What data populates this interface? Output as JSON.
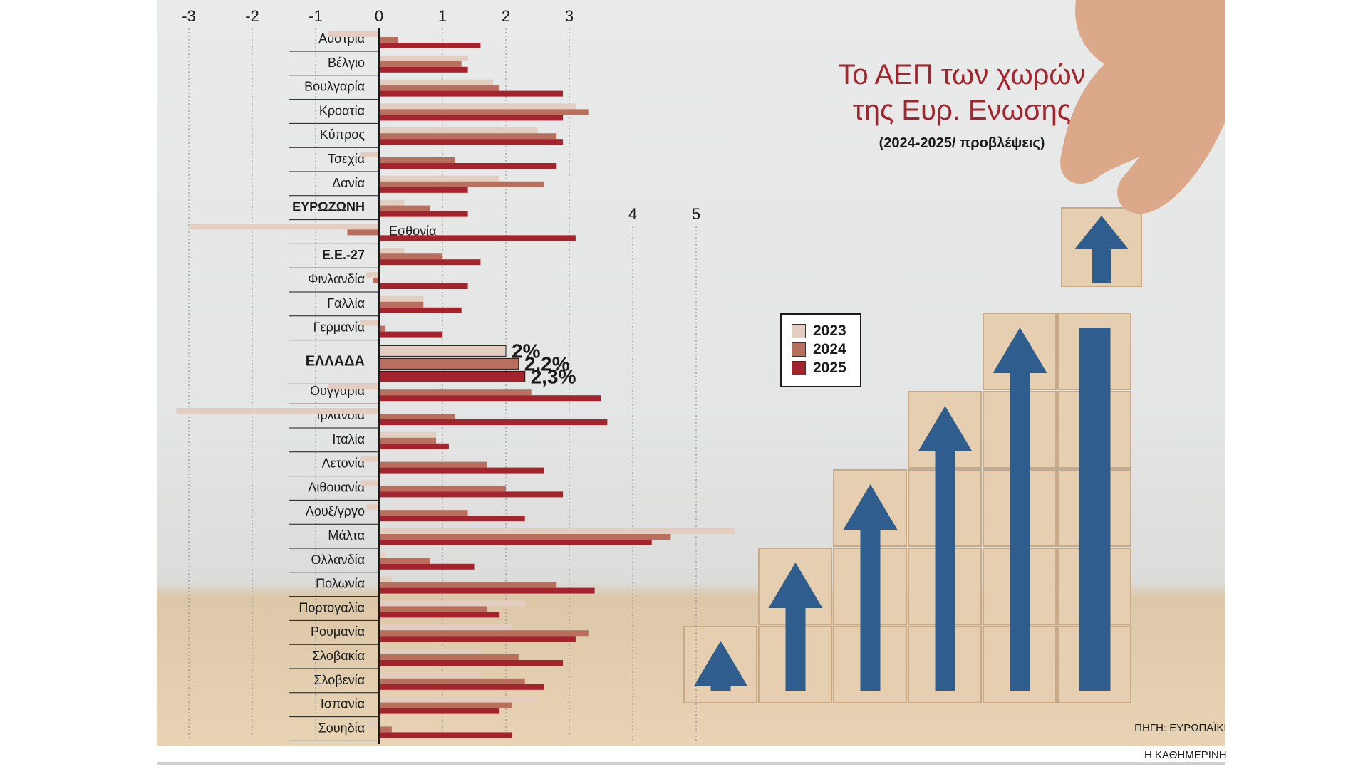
{
  "header": {
    "title_line1": "Το ΑΕΠ των χωρών",
    "title_line2": "της Ευρ. Ενωσης",
    "subtitle": "(2024-2025/ προβλέψεις)"
  },
  "source": "ΠΗΓΗ: ΕΥΡΩΠΑΪΚΗ ΕΠΙΤΡΟΠΗ",
  "brand": "Η ΚΑΘΗΜΕΡΙΝΗ",
  "colors": {
    "y2023": "#e3cdc0",
    "y2024": "#b86f5e",
    "y2025": "#a3242c",
    "title": "#a3242c",
    "arrow_blue": "#2e5d8e"
  },
  "chart_data": {
    "type": "bar",
    "orientation": "horizontal",
    "title": "Το ΑΕΠ των χωρών της Ευρ. Ενωσης",
    "subtitle": "(2024-2025/ προβλέψεις)",
    "xlim": [
      -3,
      5
    ],
    "x_ticks_top": [
      -3,
      -2,
      -1,
      0,
      1,
      2,
      3
    ],
    "x_ticks_extra": [
      4,
      5
    ],
    "legend_position": "right of Greece bars",
    "categories": [
      "Αυστρία",
      "Βέλγιο",
      "Βουλγαρία",
      "Κροατία",
      "Κύπρος",
      "Τσεχία",
      "Δανία",
      "ΕΥΡΩΖΩΝΗ",
      "Εσθονία",
      "Ε.Ε.-27",
      "Φινλανδία",
      "Γαλλία",
      "Γερμανία",
      "ΕΛΛΑΔΑ",
      "Ουγγαρία",
      "Ιρλανδία",
      "Ιταλία",
      "Λετονία",
      "Λιθουανία",
      "Λουξ/γργο",
      "Μάλτα",
      "Ολλανδία",
      "Πολωνία",
      "Πορτογαλία",
      "Ρουμανία",
      "Σλοβακία",
      "Σλοβενία",
      "Ισπανία",
      "Σουηδία"
    ],
    "bold_categories": [
      "ΕΥΡΩΖΩΝΗ",
      "Ε.Ε.-27",
      "ΕΛΛΑΔΑ"
    ],
    "series": [
      {
        "name": "2023",
        "values": [
          -0.8,
          1.4,
          1.8,
          3.1,
          2.5,
          -0.3,
          1.9,
          0.4,
          -3.0,
          0.4,
          -0.2,
          0.7,
          -0.3,
          2.0,
          -0.8,
          -3.2,
          0.9,
          -0.3,
          -0.3,
          -0.2,
          5.6,
          0.1,
          0.2,
          2.3,
          2.1,
          1.6,
          1.6,
          2.5,
          -0.2
        ]
      },
      {
        "name": "2024",
        "values": [
          0.3,
          1.3,
          1.9,
          3.3,
          2.8,
          1.2,
          2.6,
          0.8,
          -0.5,
          1.0,
          -0.1,
          0.7,
          0.1,
          2.2,
          2.4,
          1.2,
          0.9,
          1.7,
          2.0,
          1.4,
          4.6,
          0.8,
          2.8,
          1.7,
          3.3,
          2.2,
          2.3,
          2.1,
          0.2
        ]
      },
      {
        "name": "2025",
        "values": [
          1.6,
          1.4,
          2.9,
          2.9,
          2.9,
          2.8,
          1.4,
          1.4,
          3.1,
          1.6,
          1.4,
          1.3,
          1.0,
          2.3,
          3.5,
          3.6,
          1.1,
          2.6,
          2.9,
          2.3,
          4.3,
          1.5,
          3.4,
          1.9,
          3.1,
          2.9,
          2.6,
          1.9,
          2.1
        ]
      }
    ],
    "greece_labels": [
      "2%",
      "2,2%",
      "2,3%"
    ]
  }
}
